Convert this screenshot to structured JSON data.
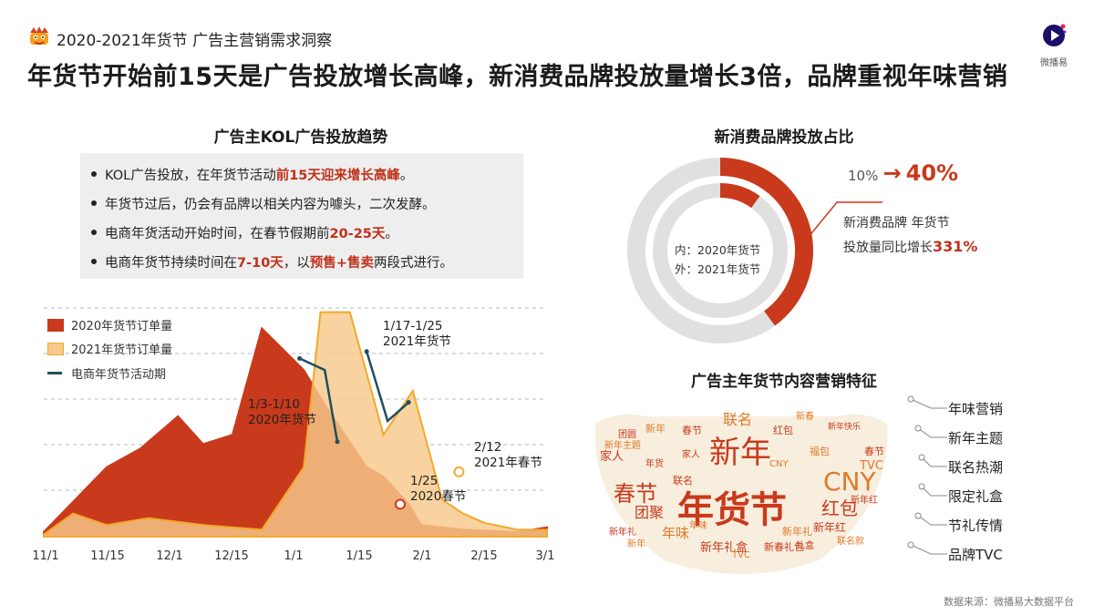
{
  "header": {
    "subtitle": "2020-2021年货节 广告主营销需求洞察",
    "headline": "年货节开始前15天是广告投放增长高峰，新消费品牌投放量增长3倍，品牌重视年味营销",
    "brand_name": "微播易"
  },
  "left_panel": {
    "title": "广告主KOL广告投放趋势",
    "bullets": [
      {
        "pre": "KOL广告投放，在年货节活动",
        "hl": "前15天迎来增长高峰",
        "post": "。"
      },
      {
        "pre": "年货节过后，仍会有品牌以相关内容为噱头，二次发酵。",
        "hl": "",
        "post": ""
      },
      {
        "pre": "电商年货活动开始时间，在春节假期前",
        "hl": "20-25天",
        "post": "。"
      },
      {
        "pre": "电商年货节持续时间在",
        "hl": "7-10天",
        "post": "，以",
        "hl2": "预售+售卖",
        "post2": "两段式进行。"
      }
    ]
  },
  "chart_data": {
    "type": "area",
    "x_ticks": [
      "11/1",
      "11/15",
      "12/1",
      "12/15",
      "1/1",
      "1/15",
      "2/1",
      "2/15",
      "3/1"
    ],
    "xlim": [
      0,
      120
    ],
    "ylim": [
      0,
      100
    ],
    "grid": true,
    "legend_position": "top-left",
    "series": [
      {
        "name": "2020年货节订单量",
        "color": "#c93a1c",
        "x": [
          0,
          15,
          23,
          32,
          38,
          45,
          52,
          62,
          67,
          77,
          81,
          87,
          90,
          100,
          113,
          120
        ],
        "y": [
          2,
          30,
          38,
          52,
          40,
          44,
          90,
          72,
          57,
          30,
          26,
          14,
          5,
          3,
          2,
          4
        ]
      },
      {
        "name": "2021年货节订单量",
        "color": "#f7c98a",
        "x": [
          0,
          7,
          15,
          25,
          38,
          52,
          62,
          66,
          73,
          81,
          88,
          95,
          100,
          105,
          113,
          120
        ],
        "y": [
          1,
          10,
          5,
          8,
          5,
          3,
          30,
          97,
          97,
          44,
          63,
          16,
          10,
          6,
          3,
          3
        ]
      },
      {
        "name": "电商年货节活动期",
        "color": "#1f4e5f",
        "segments": [
          {
            "x": [
              61,
              67,
              70
            ],
            "y": [
              77,
              72,
              41
            ]
          },
          {
            "x": [
              77,
              82,
              87
            ],
            "y": [
              80,
              50,
              58
            ]
          }
        ]
      }
    ],
    "annotations": [
      {
        "lines": [
          "1/3-1/10",
          "2020年货节"
        ]
      },
      {
        "lines": [
          "1/17-1/25",
          "2021年货节"
        ]
      },
      {
        "lines": [
          "1/25",
          "2020春节"
        ],
        "marker_x": 85,
        "marker_y": 14,
        "marker_color": "#c93a1c"
      },
      {
        "lines": [
          "2/12",
          "2021年春节"
        ],
        "marker_x": 99,
        "marker_y": 28,
        "marker_color": "#f2a92c"
      }
    ]
  },
  "donut": {
    "title": "新消费品牌投放占比",
    "inner_value": 10,
    "outer_value": 40,
    "label_from": "10%",
    "label_arrow": "→",
    "label_to": "40%",
    "caption_line1": "新消费品牌 年货节",
    "caption_line2_pre": "投放量同比增长",
    "caption_line2_hl": "331%",
    "legend_inner": "内：2020年货节",
    "legend_outer": "外：2021年货节",
    "color_hl": "#c93a1c",
    "color_base": "#e0e0e0"
  },
  "features": {
    "title": "广告主年货节内容营销特征",
    "items": [
      "年味营销",
      "新年主题",
      "联名热潮",
      "限定礼盒",
      "节礼传情",
      "品牌TVC"
    ]
  },
  "wordcloud": {
    "words": [
      "年货节",
      "新年",
      "春节",
      "CNY",
      "红包",
      "团聚",
      "联名",
      "年味",
      "新年礼盒",
      "家人",
      "TVC",
      "新年红",
      "红包",
      "福包",
      "新年礼",
      "新春礼包",
      "春节",
      "新年",
      "团圆",
      "联名",
      "家人",
      "新年主题",
      "年味",
      "CNY",
      "新年红",
      "年货",
      "新春",
      "礼盒",
      "春节",
      "新年",
      "新年快乐",
      "TVC",
      "新年礼",
      "联名款"
    ]
  },
  "footer": {
    "source": "数据来源：微播易大数据平台"
  }
}
